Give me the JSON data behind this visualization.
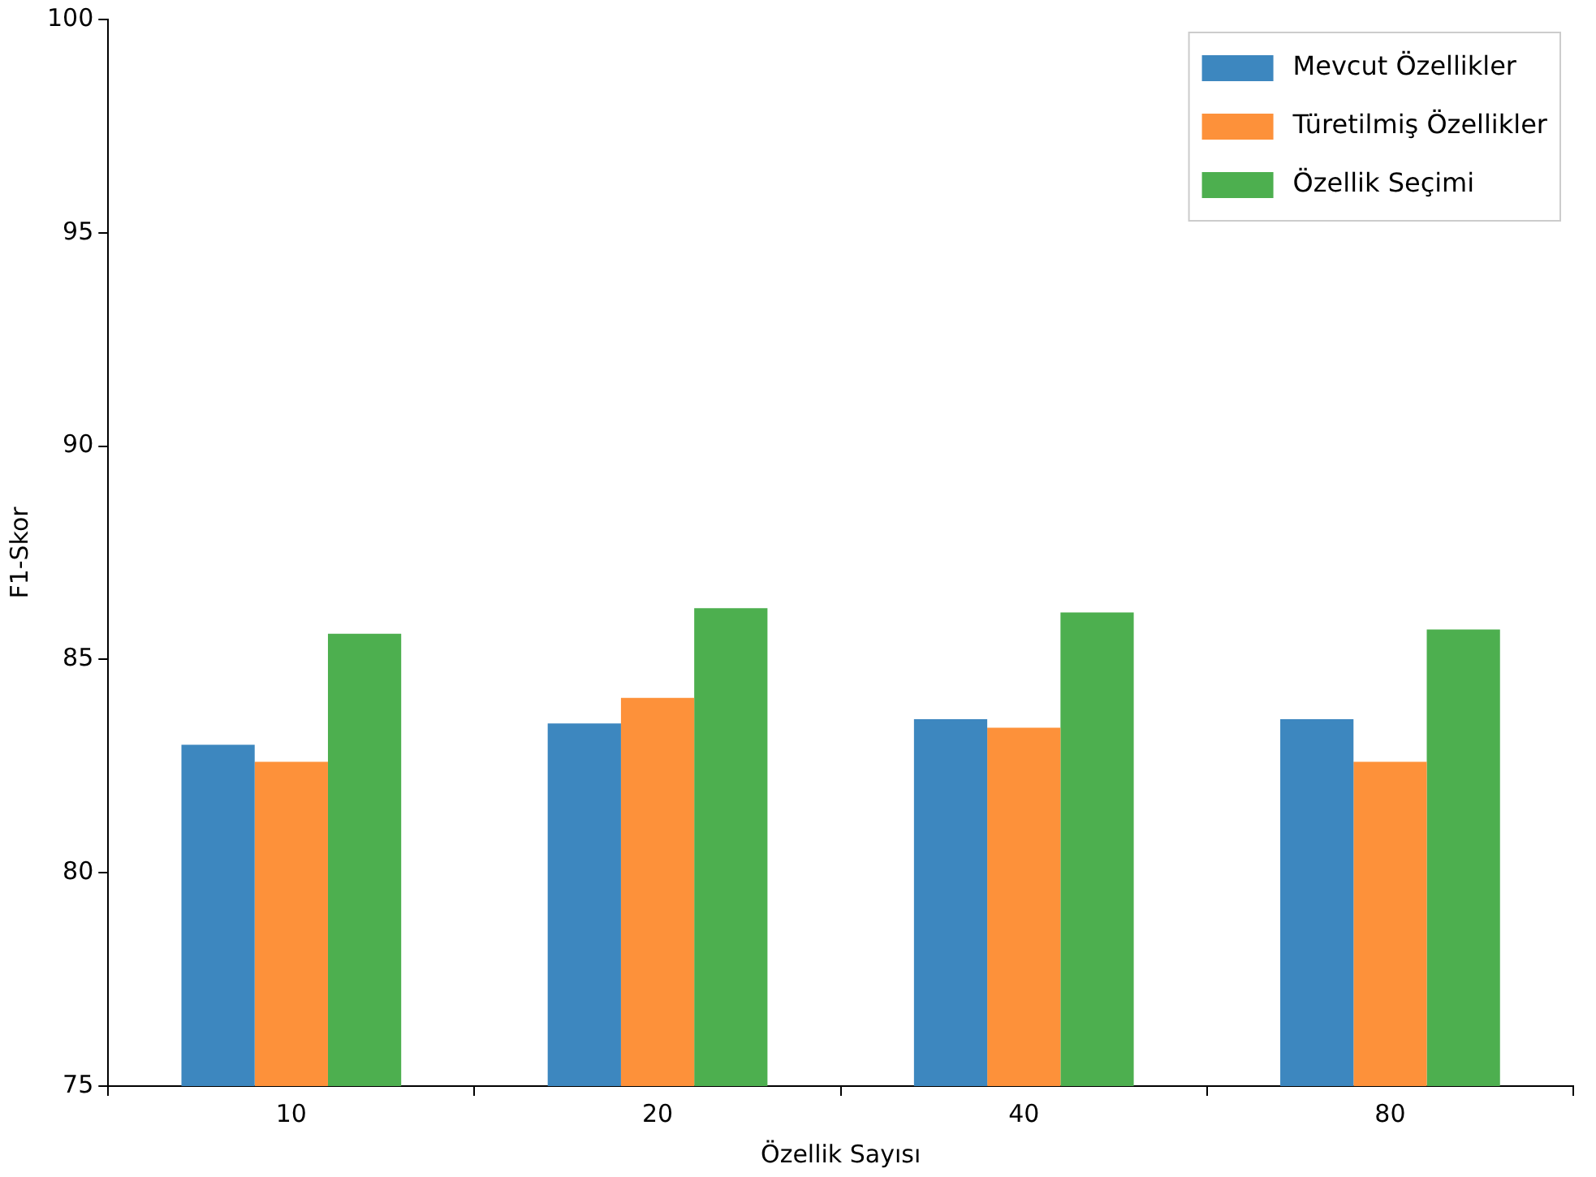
{
  "chart_data": {
    "type": "bar",
    "xlabel": "Özellik Sayısı",
    "ylabel": "F1-Skor",
    "categories": [
      "10",
      "20",
      "40",
      "80"
    ],
    "series": [
      {
        "name": "Mevcut Özellikler",
        "color": "#3d87bf",
        "values": [
          83.0,
          83.5,
          83.6,
          83.6
        ]
      },
      {
        "name": "Türetilmiş Özellikler",
        "color": "#fd913a",
        "values": [
          82.6,
          84.1,
          83.4,
          82.6
        ]
      },
      {
        "name": "Özellik Seçimi",
        "color": "#4daf4f",
        "values": [
          85.6,
          86.2,
          86.1,
          85.7
        ]
      }
    ],
    "ylim": [
      75,
      100
    ],
    "yticks": [
      75,
      80,
      85,
      90,
      95,
      100
    ],
    "grid": false,
    "legend": "top right"
  }
}
